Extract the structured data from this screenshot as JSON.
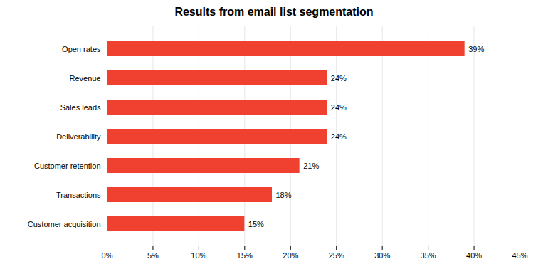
{
  "chart_data": {
    "type": "bar",
    "orientation": "horizontal",
    "title": "Results from email list segmentation",
    "categories": [
      "Customer acquisition",
      "Transactions",
      "Customer retention",
      "Deliverability",
      "Sales leads",
      "Revenue",
      "Open rates"
    ],
    "values": [
      15,
      18,
      21,
      24,
      24,
      24,
      39
    ],
    "value_labels": [
      "15%",
      "18%",
      "21%",
      "24%",
      "24%",
      "24%",
      "39%"
    ],
    "data_labels": true,
    "color": "#f04030",
    "xlim": [
      0,
      45
    ],
    "xticks": [
      {
        "value": 0,
        "label": "0%"
      },
      {
        "value": 5,
        "label": "5%"
      },
      {
        "value": 10,
        "label": "10%"
      },
      {
        "value": 15,
        "label": "15%"
      },
      {
        "value": 20,
        "label": "20%"
      },
      {
        "value": 25,
        "label": "25%"
      },
      {
        "value": 30,
        "label": "30%"
      },
      {
        "value": 35,
        "label": "35%"
      },
      {
        "value": 40,
        "label": "40%"
      },
      {
        "value": 45,
        "label": "45%"
      }
    ],
    "grid": true
  }
}
